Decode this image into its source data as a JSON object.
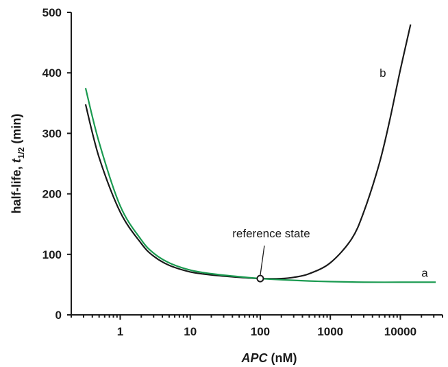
{
  "chart_data": {
    "type": "line",
    "xlabel_italic": "APC",
    "xlabel_rest": " (nM)",
    "ylabel_prefix": "half-life, ",
    "ylabel_italic": "t",
    "ylabel_sub": "1/2",
    "ylabel_suffix": " (min)",
    "xscale": "log",
    "xlim": [
      0.2,
      40000
    ],
    "ylim": [
      0,
      500
    ],
    "xticks": [
      1,
      10,
      100,
      1000,
      10000
    ],
    "xtick_labels": [
      "1",
      "10",
      "100",
      "1000",
      "10000"
    ],
    "yticks": [
      0,
      100,
      200,
      300,
      400,
      500
    ],
    "ytick_labels": [
      "0",
      "100",
      "200",
      "300",
      "400",
      "500"
    ],
    "grid": false,
    "series": [
      {
        "name": "b",
        "color": "#1a1a1a",
        "x": [
          0.32,
          0.5,
          1,
          2,
          3,
          5,
          10,
          20,
          50,
          100,
          200,
          300,
          500,
          1000,
          2000,
          3000,
          5000,
          7000,
          10000,
          14000
        ],
        "y": [
          348,
          260,
          170,
          118,
          97,
          82,
          71,
          66,
          62,
          60,
          60,
          62,
          68,
          86,
          125,
          170,
          250,
          320,
          405,
          480
        ]
      },
      {
        "name": "a",
        "color": "#1a9a50",
        "x": [
          0.32,
          0.5,
          1,
          2,
          3,
          5,
          10,
          20,
          50,
          100,
          200,
          500,
          1000,
          3000,
          10000,
          32000
        ],
        "y": [
          375,
          285,
          180,
          124,
          102,
          86,
          74,
          68,
          63,
          60,
          58,
          56,
          55,
          54,
          54,
          54
        ]
      }
    ],
    "annotations": [
      {
        "text": "reference state",
        "x": 100,
        "y": 60
      }
    ]
  }
}
